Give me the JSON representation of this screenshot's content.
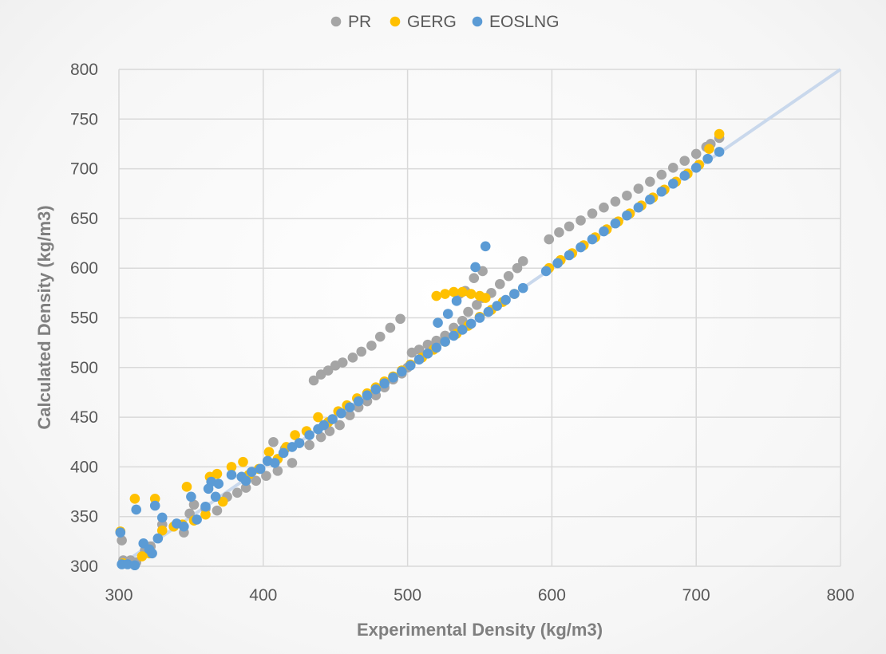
{
  "chart_data": {
    "type": "scatter",
    "title": "",
    "xlabel": "Experimental Density (kg/m3)",
    "ylabel": "Calculated Density (kg/m3)",
    "xlim": [
      300,
      800
    ],
    "ylim": [
      300,
      800
    ],
    "x_ticks": [
      300,
      400,
      500,
      600,
      700,
      800
    ],
    "y_ticks": [
      300,
      350,
      400,
      450,
      500,
      550,
      600,
      650,
      700,
      750,
      800
    ],
    "grid": true,
    "legend_position": "top-center",
    "reference_line": {
      "from": [
        300,
        300
      ],
      "to": [
        800,
        800
      ],
      "color": "#c9d8ec"
    },
    "series": [
      {
        "name": "PR",
        "color": "#a5a5a5",
        "points": [
          [
            302,
            326
          ],
          [
            303,
            306
          ],
          [
            308,
            306
          ],
          [
            312,
            304
          ],
          [
            318,
            316
          ],
          [
            322,
            320
          ],
          [
            330,
            342
          ],
          [
            338,
            340
          ],
          [
            345,
            334
          ],
          [
            349,
            353
          ],
          [
            352,
            362
          ],
          [
            360,
            358
          ],
          [
            368,
            356
          ],
          [
            375,
            370
          ],
          [
            382,
            374
          ],
          [
            388,
            379
          ],
          [
            395,
            386
          ],
          [
            402,
            391
          ],
          [
            410,
            396
          ],
          [
            420,
            404
          ],
          [
            407,
            425
          ],
          [
            415,
            418
          ],
          [
            425,
            424
          ],
          [
            432,
            422
          ],
          [
            440,
            430
          ],
          [
            446,
            436
          ],
          [
            453,
            442
          ],
          [
            460,
            452
          ],
          [
            466,
            460
          ],
          [
            472,
            466
          ],
          [
            478,
            472
          ],
          [
            484,
            480
          ],
          [
            490,
            488
          ],
          [
            496,
            494
          ],
          [
            500,
            500
          ],
          [
            503,
            515
          ],
          [
            508,
            518
          ],
          [
            514,
            523
          ],
          [
            520,
            527
          ],
          [
            526,
            532
          ],
          [
            532,
            540
          ],
          [
            538,
            547
          ],
          [
            542,
            556
          ],
          [
            548,
            563
          ],
          [
            552,
            570
          ],
          [
            558,
            575
          ],
          [
            564,
            584
          ],
          [
            570,
            592
          ],
          [
            576,
            600
          ],
          [
            580,
            607
          ],
          [
            435,
            487
          ],
          [
            440,
            493
          ],
          [
            445,
            497
          ],
          [
            450,
            502
          ],
          [
            455,
            505
          ],
          [
            462,
            510
          ],
          [
            468,
            516
          ],
          [
            475,
            522
          ],
          [
            481,
            531
          ],
          [
            488,
            540
          ],
          [
            495,
            549
          ],
          [
            540,
            577
          ],
          [
            546,
            590
          ],
          [
            552,
            597
          ],
          [
            536,
            574
          ],
          [
            598,
            629
          ],
          [
            605,
            636
          ],
          [
            612,
            642
          ],
          [
            620,
            648
          ],
          [
            628,
            655
          ],
          [
            636,
            661
          ],
          [
            644,
            667
          ],
          [
            652,
            673
          ],
          [
            660,
            680
          ],
          [
            668,
            687
          ],
          [
            676,
            694
          ],
          [
            684,
            701
          ],
          [
            692,
            708
          ],
          [
            700,
            715
          ],
          [
            707,
            722
          ],
          [
            710,
            725
          ],
          [
            716,
            731
          ]
        ]
      },
      {
        "name": "GERG",
        "color": "#ffc000",
        "points": [
          [
            301,
            335
          ],
          [
            303,
            303
          ],
          [
            311,
            368
          ],
          [
            316,
            310
          ],
          [
            321,
            313
          ],
          [
            325,
            368
          ],
          [
            330,
            336
          ],
          [
            338,
            340
          ],
          [
            344,
            342
          ],
          [
            347,
            380
          ],
          [
            352,
            346
          ],
          [
            360,
            352
          ],
          [
            363,
            390
          ],
          [
            368,
            393
          ],
          [
            372,
            365
          ],
          [
            378,
            400
          ],
          [
            386,
            405
          ],
          [
            390,
            392
          ],
          [
            397,
            398
          ],
          [
            404,
            415
          ],
          [
            410,
            408
          ],
          [
            416,
            420
          ],
          [
            422,
            432
          ],
          [
            430,
            436
          ],
          [
            438,
            450
          ],
          [
            445,
            445
          ],
          [
            452,
            456
          ],
          [
            458,
            462
          ],
          [
            465,
            469
          ],
          [
            472,
            474
          ],
          [
            478,
            480
          ],
          [
            484,
            486
          ],
          [
            490,
            491
          ],
          [
            496,
            497
          ],
          [
            502,
            503
          ],
          [
            510,
            510
          ],
          [
            518,
            518
          ],
          [
            526,
            526
          ],
          [
            534,
            534
          ],
          [
            542,
            542
          ],
          [
            550,
            551
          ],
          [
            558,
            558
          ],
          [
            566,
            566
          ],
          [
            574,
            574
          ],
          [
            520,
            572
          ],
          [
            526,
            574
          ],
          [
            532,
            576
          ],
          [
            538,
            576
          ],
          [
            544,
            574
          ],
          [
            550,
            572
          ],
          [
            554,
            570
          ],
          [
            598,
            600
          ],
          [
            606,
            608
          ],
          [
            614,
            615
          ],
          [
            622,
            623
          ],
          [
            630,
            631
          ],
          [
            638,
            639
          ],
          [
            646,
            647
          ],
          [
            654,
            655
          ],
          [
            662,
            663
          ],
          [
            670,
            671
          ],
          [
            678,
            679
          ],
          [
            686,
            687
          ],
          [
            694,
            695
          ],
          [
            702,
            704
          ],
          [
            709,
            720
          ],
          [
            716,
            735
          ]
        ]
      },
      {
        "name": "EOSLNG",
        "color": "#5b9bd5",
        "points": [
          [
            301,
            334
          ],
          [
            302,
            302
          ],
          [
            306,
            302
          ],
          [
            311,
            301
          ],
          [
            312,
            357
          ],
          [
            317,
            323
          ],
          [
            321,
            317
          ],
          [
            323,
            313
          ],
          [
            325,
            361
          ],
          [
            327,
            328
          ],
          [
            330,
            349
          ],
          [
            340,
            343
          ],
          [
            345,
            340
          ],
          [
            350,
            370
          ],
          [
            354,
            347
          ],
          [
            360,
            360
          ],
          [
            362,
            378
          ],
          [
            364,
            385
          ],
          [
            367,
            370
          ],
          [
            369,
            383
          ],
          [
            378,
            392
          ],
          [
            385,
            390
          ],
          [
            388,
            386
          ],
          [
            392,
            395
          ],
          [
            398,
            398
          ],
          [
            403,
            406
          ],
          [
            408,
            404
          ],
          [
            414,
            414
          ],
          [
            420,
            420
          ],
          [
            425,
            424
          ],
          [
            432,
            432
          ],
          [
            438,
            438
          ],
          [
            442,
            442
          ],
          [
            448,
            448
          ],
          [
            454,
            454
          ],
          [
            460,
            460
          ],
          [
            466,
            466
          ],
          [
            472,
            472
          ],
          [
            478,
            478
          ],
          [
            484,
            484
          ],
          [
            490,
            490
          ],
          [
            496,
            496
          ],
          [
            502,
            502
          ],
          [
            508,
            508
          ],
          [
            514,
            514
          ],
          [
            520,
            520
          ],
          [
            526,
            526
          ],
          [
            532,
            532
          ],
          [
            538,
            538
          ],
          [
            544,
            544
          ],
          [
            550,
            550
          ],
          [
            556,
            556
          ],
          [
            562,
            562
          ],
          [
            568,
            568
          ],
          [
            574,
            574
          ],
          [
            580,
            580
          ],
          [
            521,
            545
          ],
          [
            528,
            554
          ],
          [
            534,
            567
          ],
          [
            547,
            601
          ],
          [
            554,
            622
          ],
          [
            596,
            597
          ],
          [
            604,
            605
          ],
          [
            612,
            613
          ],
          [
            620,
            621
          ],
          [
            628,
            629
          ],
          [
            636,
            637
          ],
          [
            644,
            645
          ],
          [
            652,
            653
          ],
          [
            660,
            661
          ],
          [
            668,
            669
          ],
          [
            676,
            677
          ],
          [
            684,
            685
          ],
          [
            692,
            693
          ],
          [
            700,
            701
          ],
          [
            708,
            710
          ],
          [
            716,
            717
          ]
        ]
      }
    ]
  }
}
